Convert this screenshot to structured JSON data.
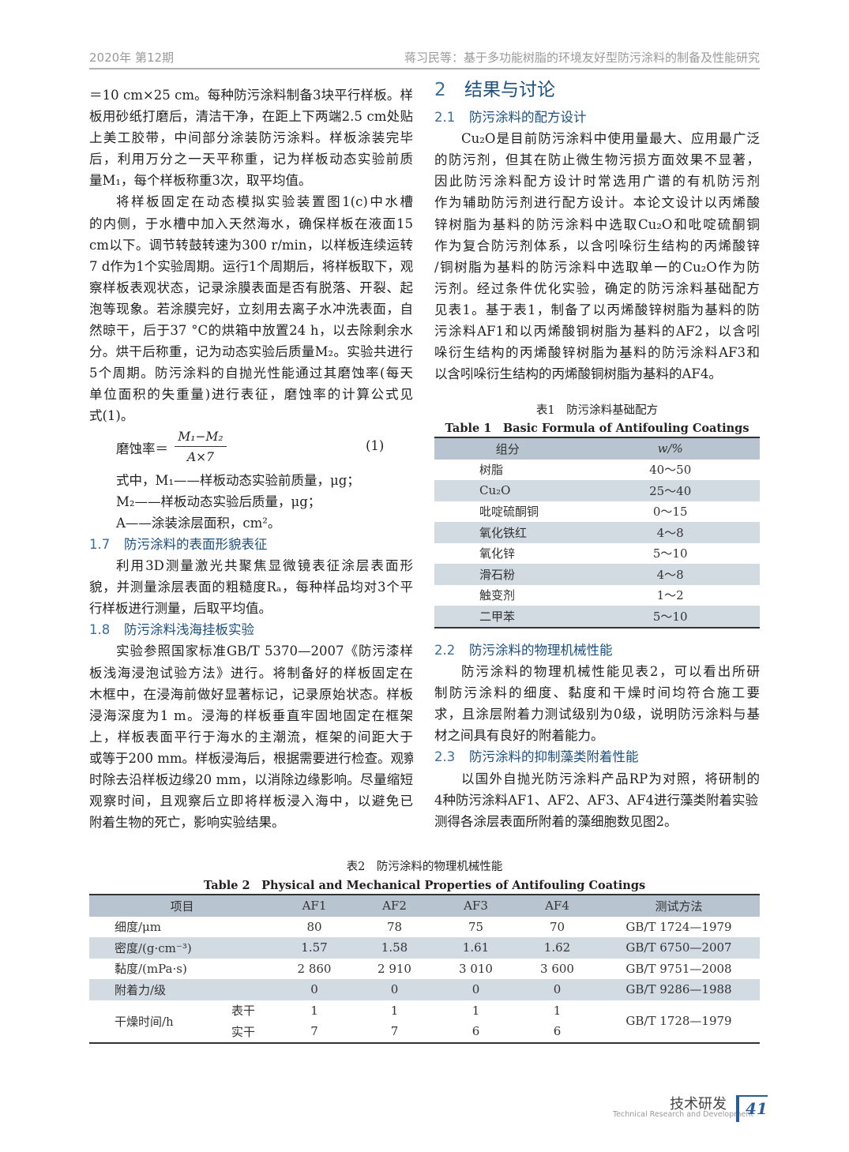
{
  "header": {
    "issue": "2020年 第12期",
    "running_title": "蒋习民等：基于多功能树脂的环境友好型防污涂料的制备及性能研究"
  },
  "left_column": [
    {
      "type": "para",
      "indent": false,
      "lines": [
        "＝10 cm×25 cm。每种防污涂料制备3块平行样板。样",
        "板用砂纸打磨后，清洁干净，在距上下两端2.5 cm处贴",
        "上美工胶带，中间部分涂装防污涂料。样板涂装完毕",
        "后，利用万分之一天平称重，记为样板动态实验前质",
        "量M₁，每个样板称重3次，取平均值。"
      ]
    },
    {
      "type": "para",
      "indent": true,
      "lines": [
        "将样板固定在动态模拟实验装置图1(c)中水槽",
        "的内侧，于水槽中加入天然海水，确保样板在液面15",
        "cm以下。调节转鼓转速为300 r/min，以样板连续运转",
        "7 d作为1个实验周期。运行1个周期后，将样板取下，观",
        "察样板表观状态，记录涂膜表面是否有脱落、开裂、起",
        "泡等现象。若涂膜完好，立刻用去离子水冲洗表面，自",
        "然晾干，后于37 °C的烘箱中放置24 h，以去除剩余水",
        "分。烘干后称重，记为动态实验后质量M₂。实验共进行",
        "5个周期。防污涂料的自抛光性能通过其磨蚀率(每天",
        "单位面积的失重量)进行表征，磨蚀率的计算公式见",
        "式(1)。"
      ]
    },
    {
      "type": "formula",
      "lhs": "磨蚀率＝",
      "numerator": "M₁−M₂",
      "denominator": "A×7",
      "eqno": "(1)"
    },
    {
      "type": "where",
      "lines": [
        "式中，M₁——样板动态实验前质量，μg；",
        "M₂——样板动态实验后质量，μg；",
        "A——涂装涂层面积，cm²。"
      ]
    },
    {
      "type": "heading",
      "num": "1.7",
      "title": "防污涂料的表面形貌表征"
    },
    {
      "type": "para",
      "indent": true,
      "lines": [
        "利用3D测量激光共聚焦显微镜表征涂层表面形",
        "貌，并测量涂层表面的粗糙度Rₐ，每种样品均对3个平",
        "行样板进行测量，后取平均值。"
      ]
    },
    {
      "type": "heading",
      "num": "1.8",
      "title": "防污涂料浅海挂板实验"
    },
    {
      "type": "para",
      "indent": true,
      "lines": [
        "实验参照国家标准GB/T 5370—2007《防污漆样",
        "板浅海浸泡试验方法》进行。将制备好的样板固定在",
        "木框中，在浸海前做好显著标记，记录原始状态。样板",
        "浸海深度为1 m。浸海的样板垂直牢固地固定在框架",
        "上，样板表面平行于海水的主潮流，框架的间距大于",
        "或等于200 mm。样板浸海后，根据需要进行检查。观察",
        "时除去沿样板边缘20 mm，以消除边缘影响。尽量缩短",
        "观察时间，且观察后立即将样板浸入海中，以避免已",
        "附着生物的死亡，影响实验结果。"
      ]
    }
  ],
  "right_top": [
    {
      "type": "h1",
      "num": "2",
      "title": "结果与讨论"
    },
    {
      "type": "heading",
      "num": "2.1",
      "title": "防污涂料的配方设计"
    },
    {
      "type": "para",
      "indent": true,
      "lines": [
        "Cu₂O是目前防污涂料中使用量最大、应用最广泛",
        "的防污剂，但其在防止微生物污损方面效果不显著，",
        "因此防污涂料配方设计时常选用广谱的有机防污剂",
        "作为辅助防污剂进行配方设计。本论文设计以丙烯酸",
        "锌树脂为基料的防污涂料中选取Cu₂O和吡啶硫酮铜",
        "作为复合防污剂体系，以含吲哚衍生结构的丙烯酸锌",
        "/铜树脂为基料的防污涂料中选取单一的Cu₂O作为防",
        "污剂。经过条件优化实验，确定的防污涂料基础配方",
        "见表1。基于表1，制备了以丙烯酸锌树脂为基料的防",
        "污涂料AF1和以丙烯酸铜树脂为基料的AF2，以含吲",
        "哚衍生结构的丙烯酸锌树脂为基料的防污涂料AF3和",
        "以含吲哚衍生结构的丙烯酸铜树脂为基料的AF4。"
      ]
    }
  ],
  "table1": {
    "caption_cn": "表1　防污涂料基础配方",
    "caption_en": "Table 1　Basic Formula of Antifouling Coatings",
    "headers": [
      "组分",
      "w/%"
    ],
    "rows": [
      [
        "树脂",
        "40～50"
      ],
      [
        "Cu₂O",
        "25～40"
      ],
      [
        "吡啶硫酮铜",
        "0～15"
      ],
      [
        "氧化铁红",
        "4～8"
      ],
      [
        "氧化锌",
        "5～10"
      ],
      [
        "滑石粉",
        "4～8"
      ],
      [
        "触变剂",
        "1～2"
      ],
      [
        "二甲苯",
        "5～10"
      ]
    ]
  },
  "right_bottom": [
    {
      "type": "heading",
      "num": "2.2",
      "title": "防污涂料的物理机械性能"
    },
    {
      "type": "para",
      "indent": true,
      "lines": [
        "防污涂料的物理机械性能见表2，可以看出所研",
        "制防污涂料的细度、黏度和干燥时间均符合施工要",
        "求，且涂层附着力测试级别为0级，说明防污涂料与基",
        "材之间具有良好的附着能力。"
      ]
    },
    {
      "type": "heading",
      "num": "2.3",
      "title": "防污涂料的抑制藻类附着性能"
    },
    {
      "type": "para",
      "indent": true,
      "lines": [
        "以国外自抛光防污涂料产品RP为对照，将研制的",
        "4种防污涂料AF1、AF2、AF3、AF4进行藻类附着实验，",
        "测得各涂层表面所附着的藻细胞数见图2。"
      ]
    }
  ],
  "table2": {
    "caption_cn": "表2　防污涂料的物理机械性能",
    "caption_en": "Table 2　Physical and Mechanical Properties of Antifouling Coatings",
    "headers": [
      "项目",
      "AF1",
      "AF2",
      "AF3",
      "AF4",
      "测试方法"
    ],
    "rows": [
      {
        "item": "细度/μm",
        "values": [
          "80",
          "78",
          "75",
          "70"
        ],
        "method": "GB/T 1724—1979"
      },
      {
        "item": "密度/(g·cm⁻³)",
        "values": [
          "1.57",
          "1.58",
          "1.61",
          "1.62"
        ],
        "method": "GB/T 6750—2007"
      },
      {
        "item": "黏度/(mPa·s)",
        "values": [
          "2 860",
          "2 910",
          "3 010",
          "3 600"
        ],
        "method": "GB/T 9751—2008"
      },
      {
        "item": "附着力/级",
        "values": [
          "0",
          "0",
          "0",
          "0"
        ],
        "method": "GB/T 9286—1988"
      }
    ],
    "drying": {
      "item": "干燥时间/h",
      "method": "GB/T 1728—1979",
      "sub": [
        {
          "label": "表干",
          "values": [
            "1",
            "1",
            "1",
            "1"
          ]
        },
        {
          "label": "实干",
          "values": [
            "7",
            "7",
            "6",
            "6"
          ]
        }
      ]
    }
  },
  "footer": {
    "section_cn": "技术研发",
    "section_en": "Technical Research and Development",
    "page": "41",
    "accent_color": "#2a5d95"
  }
}
